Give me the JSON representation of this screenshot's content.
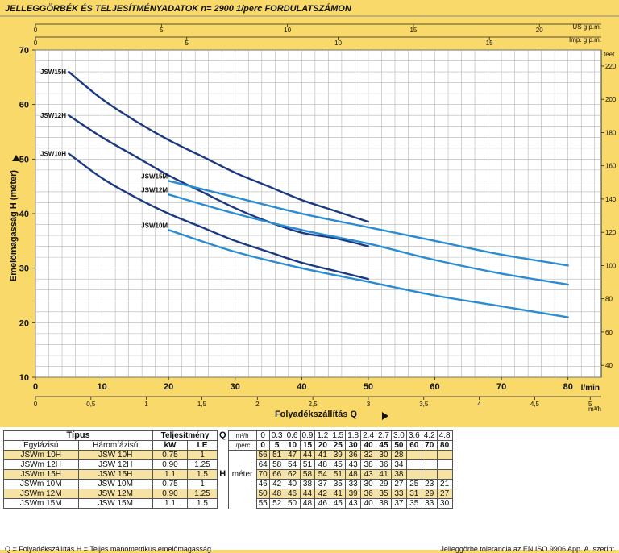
{
  "chart_data": {
    "type": "line",
    "title": "JELLEGGÖRBÉK ÉS TELJESÍTMÉNYADATOK n= 2900  1/perc FORDULATSZÁMON",
    "xlabel": "Folyadékszállítás      Q",
    "ylabel": "Emelőmagasság      H      (méter)",
    "xlim": [
      0,
      85
    ],
    "ylim": [
      10,
      70
    ],
    "x_unit": "l/min",
    "y_right_unit": "feet",
    "x_ticks": [
      "0",
      "10",
      "20",
      "30",
      "40",
      "50",
      "60",
      "70",
      "80"
    ],
    "y_ticks": [
      "10",
      "20",
      "30",
      "40",
      "50",
      "60",
      "70"
    ],
    "top_axis_us": {
      "label": "US g.p.m.",
      "ticks": [
        "0",
        "5",
        "10",
        "15",
        "20"
      ]
    },
    "top_axis_imp": {
      "label": "Imp. g.p.m.",
      "ticks": [
        "0",
        "5",
        "10",
        "15"
      ]
    },
    "bottom_axis_m3h": {
      "label": "m³/h",
      "ticks": [
        "0",
        "0,5",
        "1",
        "1,5",
        "2",
        "2,5",
        "3",
        "3,5",
        "4",
        "4,5",
        "5"
      ]
    },
    "right_axis_feet": {
      "label": "feet",
      "ticks": [
        "40",
        "60",
        "80",
        "100",
        "120",
        "140",
        "160",
        "180",
        "200",
        "220"
      ]
    },
    "grid": true,
    "series": [
      {
        "name": "JSW15H",
        "color": "#1c3a82",
        "x": [
          5,
          10,
          15,
          20,
          25,
          30,
          35,
          40,
          45,
          50
        ],
        "y": [
          66,
          61,
          57,
          53.5,
          50.5,
          47.5,
          45,
          42.5,
          40.5,
          38.5
        ]
      },
      {
        "name": "JSW12H",
        "color": "#1c3a82",
        "x": [
          5,
          10,
          15,
          20,
          25,
          30,
          35,
          40,
          45,
          50
        ],
        "y": [
          58,
          54,
          50.5,
          47,
          44,
          41,
          38.5,
          36.5,
          35.5,
          34
        ]
      },
      {
        "name": "JSW10H",
        "color": "#1c3a82",
        "x": [
          5,
          10,
          15,
          20,
          25,
          30,
          35,
          40,
          45,
          50
        ],
        "y": [
          51,
          46.5,
          43,
          40,
          37.5,
          35,
          33,
          31,
          29.5,
          28
        ]
      },
      {
        "name": "JSW15M",
        "color": "#2a8cd2",
        "x": [
          20,
          30,
          40,
          50,
          60,
          70,
          80
        ],
        "y": [
          46,
          43,
          40,
          37.5,
          35,
          32.5,
          30.5
        ]
      },
      {
        "name": "JSW12M",
        "color": "#2a8cd2",
        "x": [
          20,
          30,
          40,
          50,
          60,
          70,
          80
        ],
        "y": [
          43.5,
          40,
          37,
          34.5,
          31.5,
          29,
          27
        ]
      },
      {
        "name": "JSW10M",
        "color": "#2a8cd2",
        "x": [
          20,
          30,
          40,
          50,
          60,
          70,
          80
        ],
        "y": [
          37,
          33,
          30,
          27.5,
          25,
          23,
          21
        ]
      }
    ]
  },
  "table": {
    "tipus": "Típus",
    "teljesitmeny": "Teljesítmény",
    "egyfazisu": "Egyfázisú",
    "haromfazisu": "Háromfázisú",
    "kw": "kW",
    "le": "LE",
    "q": "Q",
    "m3h": "m³/h",
    "lperc": "l/perc",
    "h": "H",
    "meter": "méter",
    "q_m3h": [
      "0",
      "0.3",
      "0.6",
      "0.9",
      "1.2",
      "1.5",
      "1.8",
      "2.4",
      "2.7",
      "3.0",
      "3.6",
      "4.2",
      "4.8"
    ],
    "q_lperc": [
      "0",
      "5",
      "10",
      "15",
      "20",
      "25",
      "30",
      "40",
      "45",
      "50",
      "60",
      "70",
      "80"
    ],
    "rows": [
      {
        "mono": "JSWm 10H",
        "tri": "JSW 10H",
        "kw": "0.75",
        "le": "1",
        "h": [
          "56",
          "51",
          "47",
          "44",
          "41",
          "39",
          "36",
          "32",
          "30",
          "28",
          "",
          "",
          ""
        ],
        "hl": true
      },
      {
        "mono": "JSWm 12H",
        "tri": "JSW 12H",
        "kw": "0.90",
        "le": "1.25",
        "h": [
          "64",
          "58",
          "54",
          "51",
          "48",
          "45",
          "43",
          "38",
          "36",
          "34",
          "",
          "",
          ""
        ],
        "hl": false
      },
      {
        "mono": "JSWm 15H",
        "tri": "JSW 15H",
        "kw": "1.1",
        "le": "1.5",
        "h": [
          "70",
          "66",
          "62",
          "58",
          "54",
          "51",
          "48",
          "43",
          "41",
          "38",
          "",
          "",
          ""
        ],
        "hl": true
      },
      {
        "mono": "JSWm 10M",
        "tri": "JSW 10M",
        "kw": "0.75",
        "le": "1",
        "h": [
          "46",
          "42",
          "40",
          "38",
          "37",
          "35",
          "33",
          "30",
          "29",
          "27",
          "25",
          "23",
          "21"
        ],
        "hl": false
      },
      {
        "mono": "JSWm 12M",
        "tri": "JSW 12M",
        "kw": "0.90",
        "le": "1.25",
        "h": [
          "50",
          "48",
          "46",
          "44",
          "42",
          "41",
          "39",
          "36",
          "35",
          "33",
          "31",
          "29",
          "27"
        ],
        "hl": true
      },
      {
        "mono": "JSWm 15M",
        "tri": "JSW 15M",
        "kw": "1.1",
        "le": "1.5",
        "h": [
          "55",
          "52",
          "50",
          "48",
          "46",
          "45",
          "43",
          "40",
          "38",
          "37",
          "35",
          "33",
          "30"
        ],
        "hl": false
      }
    ]
  },
  "footnote_left": "Q = Folyadékszállítás  H = Teljes manometrikus emelőmagasság",
  "footnote_right": "Jelleggörbe tolerancia az EN ISO 9906 App. A. szerint",
  "colors": {
    "background": "#f9d96a",
    "dark_series": "#1c3a82",
    "light_series": "#2a8cd2",
    "grid": "#b5b5b5",
    "row_highlight": "#f6e2a2"
  }
}
